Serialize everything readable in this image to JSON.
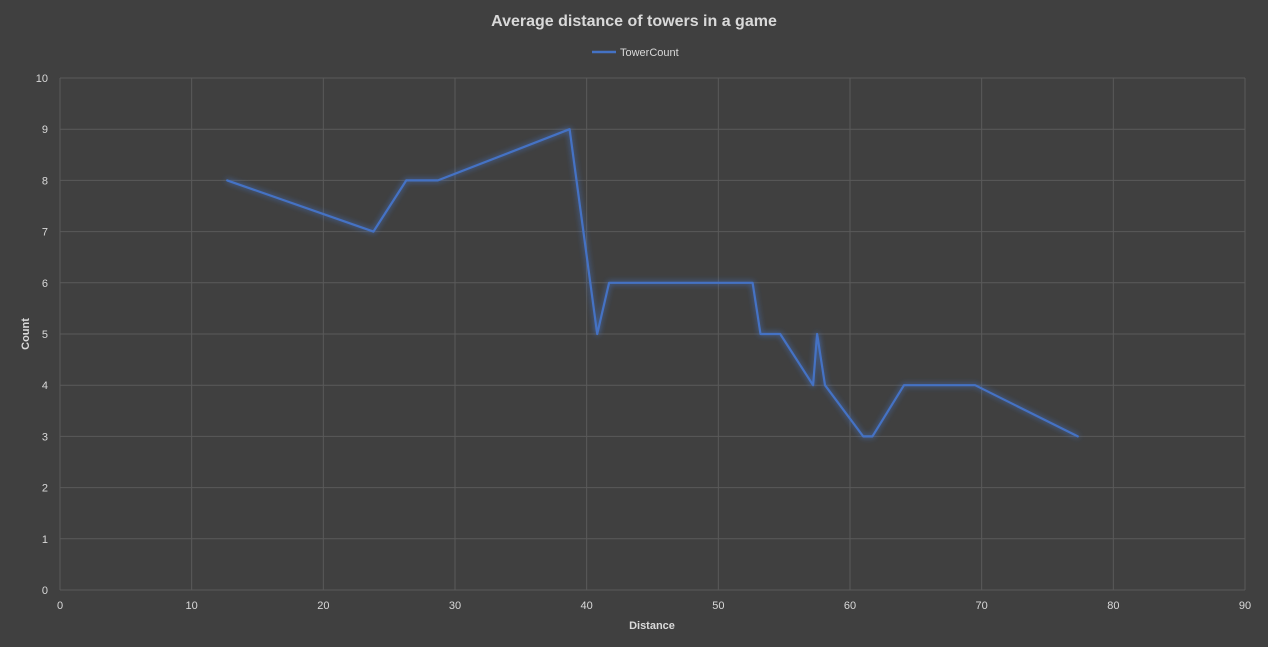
{
  "chart_data": {
    "type": "line",
    "title": "Average distance of towers in a game",
    "xlabel": "Distance",
    "ylabel": "Count",
    "xlim": [
      0,
      90
    ],
    "ylim": [
      0,
      10
    ],
    "xticks": [
      0,
      10,
      20,
      30,
      40,
      50,
      60,
      70,
      80,
      90
    ],
    "yticks": [
      0,
      1,
      2,
      3,
      4,
      5,
      6,
      7,
      8,
      9,
      10
    ],
    "grid": true,
    "legend_position": "top",
    "series": [
      {
        "name": "TowerCount",
        "color": "#4472c4",
        "x": [
          12.7,
          23.8,
          26.3,
          28.7,
          38.7,
          40.8,
          41.7,
          52.6,
          53.2,
          54.7,
          57.2,
          57.5,
          58.1,
          61.0,
          61.7,
          64.1,
          69.5,
          77.3
        ],
        "y": [
          8,
          7,
          8,
          8,
          9,
          5,
          6,
          6,
          5,
          5,
          4,
          5,
          4,
          3,
          3,
          4,
          4,
          3
        ]
      }
    ]
  }
}
